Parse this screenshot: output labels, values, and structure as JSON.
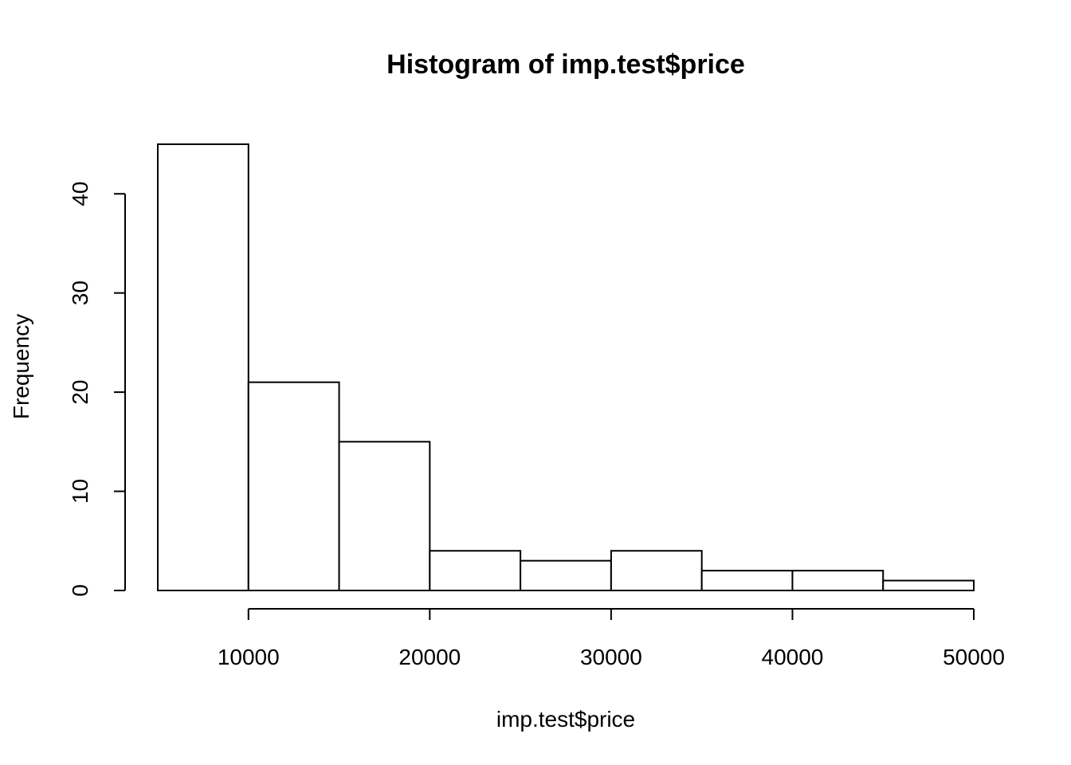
{
  "chart_data": {
    "type": "bar",
    "histogram": true,
    "title": "Histogram of imp.test$price",
    "xlabel": "imp.test$price",
    "ylabel": "Frequency",
    "bin_edges": [
      5000,
      10000,
      15000,
      20000,
      25000,
      30000,
      35000,
      40000,
      45000,
      50000
    ],
    "values": [
      45,
      21,
      15,
      4,
      3,
      4,
      2,
      2,
      1
    ],
    "xticks": [
      10000,
      20000,
      30000,
      40000,
      50000
    ],
    "xtick_labels": [
      "10000",
      "20000",
      "30000",
      "40000",
      "50000"
    ],
    "yticks": [
      0,
      10,
      20,
      30,
      40
    ],
    "ytick_labels": [
      "0",
      "10",
      "20",
      "30",
      "40"
    ],
    "xlim": [
      5000,
      50000
    ],
    "ylim": [
      0,
      45
    ],
    "grid": false,
    "colors": {
      "bar_fill": "#ffffff",
      "bar_stroke": "#000000"
    }
  }
}
